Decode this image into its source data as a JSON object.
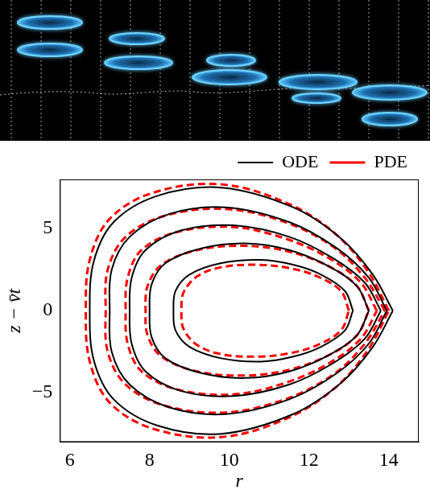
{
  "chart_data": {
    "type": "line",
    "x_label": "r",
    "y_label": "z − v̄t",
    "xlim": [
      5.75,
      14.75
    ],
    "ylim": [
      -8,
      8
    ],
    "xticks": [
      6,
      8,
      10,
      12,
      14
    ],
    "yticks": [
      {
        "value": -5,
        "label": "−5"
      },
      0,
      5
    ],
    "grid": false,
    "legend": "top",
    "series": [
      {
        "name": "ODE",
        "color": "#000000",
        "line_style": "solid",
        "x": [
          14.1,
          13.6,
          12.8,
          11.6,
          9.8,
          8.2,
          7.1,
          6.6,
          6.5,
          6.6,
          7.1,
          8.2,
          9.8,
          11.6,
          12.8,
          13.6,
          14.1,
          null,
          13.95,
          13.5,
          12.7,
          11.5,
          9.9,
          8.5,
          7.5,
          7.05,
          7.0,
          7.05,
          7.5,
          8.5,
          9.9,
          11.5,
          12.7,
          13.5,
          13.95,
          null,
          13.8,
          13.4,
          12.6,
          11.5,
          10.1,
          8.8,
          7.9,
          7.55,
          7.5,
          7.55,
          7.9,
          8.8,
          10.1,
          11.5,
          12.6,
          13.4,
          13.8,
          null,
          13.5,
          13.2,
          12.5,
          11.5,
          10.4,
          9.3,
          8.4,
          8.05,
          8.0,
          8.05,
          8.4,
          9.3,
          10.4,
          11.5,
          12.5,
          13.2,
          13.5,
          null,
          13.1,
          12.9,
          12.3,
          11.6,
          10.8,
          9.8,
          9.0,
          8.65,
          8.6,
          8.65,
          9.0,
          9.8,
          10.8,
          11.6,
          12.3,
          12.9,
          13.1
        ],
        "values": [
          0,
          2.2,
          4.4,
          6.3,
          7.5,
          7.0,
          5.4,
          3.0,
          0,
          -3.0,
          -5.4,
          -7.0,
          -7.5,
          -6.3,
          -4.4,
          -2.2,
          0,
          null,
          0,
          2.0,
          3.8,
          5.4,
          6.3,
          5.9,
          4.5,
          2.5,
          0,
          -2.5,
          -4.5,
          -5.9,
          -6.3,
          -5.4,
          -3.8,
          -2.0,
          0,
          null,
          0,
          1.7,
          3.2,
          4.5,
          5.2,
          4.9,
          3.7,
          2.0,
          0,
          -2.0,
          -3.7,
          -4.9,
          -5.2,
          -4.5,
          -3.2,
          -1.7,
          0,
          null,
          0,
          1.5,
          2.7,
          3.7,
          4.1,
          3.8,
          2.9,
          1.6,
          0,
          -1.6,
          -2.9,
          -3.8,
          -4.1,
          -3.7,
          -2.7,
          -1.5,
          0,
          null,
          0,
          1.2,
          2.2,
          2.8,
          3.1,
          2.9,
          2.2,
          1.2,
          0,
          -1.2,
          -2.2,
          -2.9,
          -3.1,
          -2.8,
          -2.2,
          -1.2,
          0
        ]
      },
      {
        "name": "PDE",
        "color": "#ff0000",
        "line_style": "dashed",
        "x": [
          14.0,
          13.5,
          12.7,
          11.5,
          9.8,
          8.1,
          7.0,
          6.5,
          6.4,
          6.5,
          7.0,
          8.1,
          9.8,
          11.5,
          12.7,
          13.5,
          14.0,
          null,
          13.9,
          13.4,
          12.6,
          11.4,
          9.9,
          8.4,
          7.4,
          6.95,
          6.9,
          6.95,
          7.4,
          8.4,
          9.9,
          11.4,
          12.6,
          13.4,
          13.9,
          null,
          13.7,
          13.3,
          12.5,
          11.4,
          10.1,
          8.7,
          7.8,
          7.45,
          7.4,
          7.45,
          7.8,
          8.7,
          10.1,
          11.4,
          12.5,
          13.3,
          13.7,
          null,
          13.5,
          13.2,
          12.5,
          11.5,
          10.4,
          9.2,
          8.3,
          7.95,
          7.9,
          7.95,
          8.3,
          9.2,
          10.4,
          11.5,
          12.5,
          13.2,
          13.5,
          null,
          13.0,
          12.8,
          12.2,
          11.5,
          10.7,
          9.8,
          9.2,
          8.85,
          8.8,
          8.85,
          9.2,
          9.8,
          10.7,
          11.5,
          12.2,
          12.8,
          13.0
        ],
        "values": [
          0,
          2.3,
          4.6,
          6.5,
          7.7,
          7.2,
          5.6,
          3.1,
          0,
          -3.1,
          -5.6,
          -7.2,
          -7.7,
          -6.5,
          -4.6,
          -2.3,
          0,
          null,
          0,
          2.0,
          3.9,
          5.4,
          6.2,
          5.8,
          4.5,
          2.5,
          0,
          -2.5,
          -4.5,
          -5.8,
          -6.2,
          -5.4,
          -3.9,
          -2.0,
          0,
          null,
          0,
          1.7,
          3.2,
          4.4,
          5.1,
          4.8,
          3.7,
          2.0,
          0,
          -2.0,
          -3.7,
          -4.8,
          -5.1,
          -4.4,
          -3.2,
          -1.7,
          0,
          null,
          0,
          1.5,
          2.7,
          3.6,
          3.95,
          3.7,
          2.8,
          1.5,
          0,
          -1.5,
          -2.8,
          -3.7,
          -3.95,
          -3.6,
          -2.7,
          -1.5,
          0,
          null,
          0,
          1.2,
          2.1,
          2.6,
          2.8,
          2.65,
          2.1,
          1.1,
          0,
          -1.1,
          -2.1,
          -2.65,
          -2.8,
          -2.6,
          -2.1,
          -1.2,
          0
        ]
      }
    ]
  }
}
